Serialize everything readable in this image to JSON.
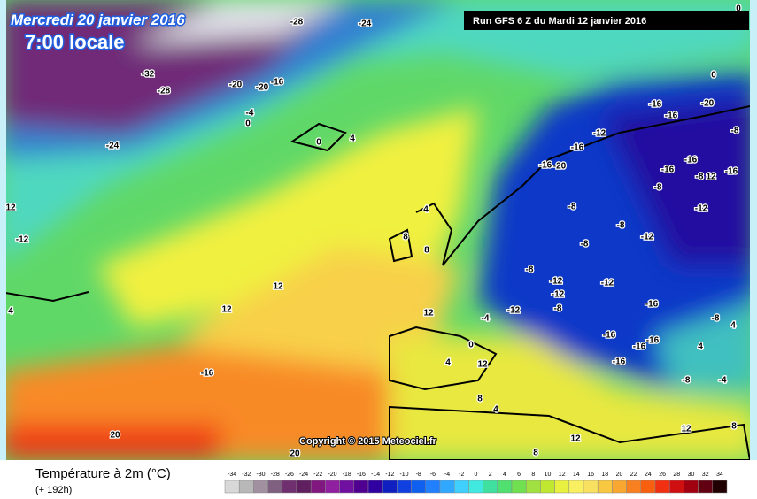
{
  "header": {
    "date": "Mercredi 20 janvier 2016",
    "time": "7:00 locale",
    "run": "Run GFS 6 Z du Mardi 12 janvier 2016"
  },
  "copyright": "Copyright © 2015 Meteociel.fr",
  "legend": {
    "title": "Température à 2m (°C)",
    "lead": "(+ 192h)",
    "ticks": [
      -34,
      -32,
      -30,
      -28,
      -26,
      -24,
      -22,
      -20,
      -18,
      -16,
      -14,
      -12,
      -10,
      -8,
      -6,
      -4,
      -2,
      0,
      2,
      4,
      6,
      8,
      10,
      12,
      14,
      16,
      18,
      20,
      22,
      24,
      26,
      28,
      30,
      32,
      34
    ],
    "colors": [
      "#d8d8d8",
      "#b8b8b8",
      "#a090a0",
      "#806080",
      "#703070",
      "#602060",
      "#801880",
      "#9020a0",
      "#7010a0",
      "#500090",
      "#3000a0",
      "#1020c0",
      "#1040e0",
      "#1060f0",
      "#2080ff",
      "#30a8ff",
      "#40d0ff",
      "#40e8e0",
      "#40e0a0",
      "#50e070",
      "#70e050",
      "#a0e040",
      "#c0e830",
      "#e8f040",
      "#f8f060",
      "#f8e060",
      "#f8c840",
      "#f8a830",
      "#f88020",
      "#f86010",
      "#f03010",
      "#d01010",
      "#a00010",
      "#600010",
      "#200000"
    ]
  },
  "labels": [
    "-28",
    "-24",
    "-32",
    "-28",
    "-20",
    "-20",
    "-16",
    "-4",
    "0",
    "-24",
    "0",
    "4",
    "12",
    "-12",
    "4",
    "12",
    "12",
    "-16",
    "20",
    "20",
    "8",
    "8",
    "4",
    "12",
    "-4",
    "0",
    "4",
    "12",
    "8",
    "4",
    "12",
    "8",
    "-16",
    "-16",
    "-20",
    "-12",
    "-16",
    "-16",
    "-20",
    "-16",
    "-16",
    "-8",
    "12",
    "-16",
    "-8",
    "-12",
    "-8",
    "-8",
    "-12",
    "-8",
    "-8",
    "-12",
    "-12",
    "-12",
    "-8",
    "-16",
    "-12",
    "-8",
    "-16",
    "-16",
    "-16",
    "-16",
    "4",
    "4",
    "-8",
    "-4",
    "12",
    "8",
    "0",
    "-8",
    "0"
  ]
}
